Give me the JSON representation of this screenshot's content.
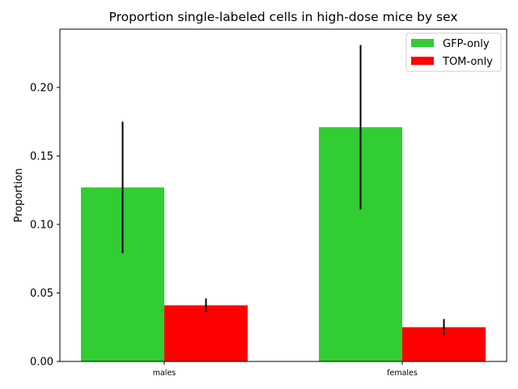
{
  "chart_data": {
    "type": "bar",
    "title": "Proportion single-labeled cells in high-dose mice by sex",
    "xlabel": "",
    "ylabel": "Proportion",
    "categories": [
      "males",
      "females"
    ],
    "series": [
      {
        "name": "GFP-only",
        "color": "#32cd32",
        "values": [
          0.127,
          0.171
        ],
        "error_low": [
          0.079,
          0.111
        ],
        "error_high": [
          0.175,
          0.231
        ]
      },
      {
        "name": "TOM-only",
        "color": "#ff0000",
        "values": [
          0.041,
          0.025
        ],
        "error_low": [
          0.036,
          0.019
        ],
        "error_high": [
          0.046,
          0.031
        ]
      }
    ],
    "ylim": [
      0,
      0.2425
    ],
    "yticks": [
      "0.00",
      "0.05",
      "0.10",
      "0.15",
      "0.20"
    ],
    "ytick_values": [
      0,
      0.05,
      0.1,
      0.15,
      0.2
    ],
    "grid": false,
    "legend_position": "top-right"
  }
}
